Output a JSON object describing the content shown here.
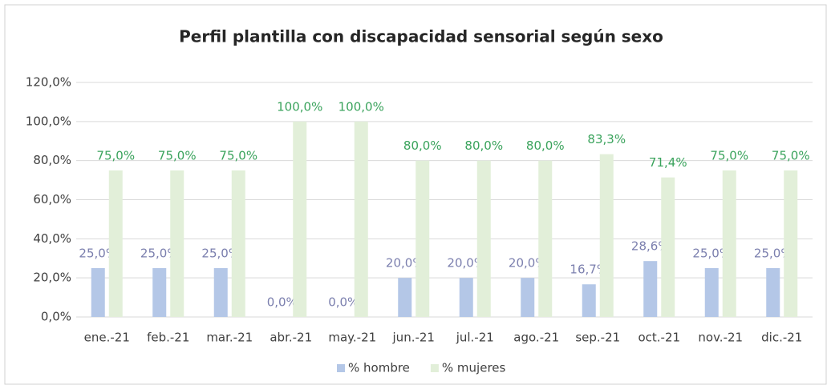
{
  "chart_data": {
    "type": "bar",
    "title": "Perfil plantilla con discapacidad  sensorial según sexo",
    "categories": [
      "ene.-21",
      "feb.-21",
      "mar.-21",
      "abr.-21",
      "may.-21",
      "jun.-21",
      "jul.-21",
      "ago.-21",
      "sep.-21",
      "oct.-21",
      "nov.-21",
      "dic.-21"
    ],
    "series": [
      {
        "name": "% hombre",
        "color": "#b4c7e7",
        "label_color": "#7b7fae",
        "values": [
          25,
          25,
          25,
          0,
          0,
          20,
          20,
          20,
          16.7,
          28.6,
          25,
          25
        ],
        "value_labels": [
          "25,0%",
          "25,0%",
          "25,0%",
          "0,0%",
          "0,0%",
          "20,0%",
          "20,0%",
          "20,0%",
          "16,7%",
          "28,6%",
          "25,0%",
          "25,0%"
        ]
      },
      {
        "name": "% mujeres",
        "color": "#e2efd9",
        "label_color": "#3aa35c",
        "values": [
          75,
          75,
          75,
          100,
          100,
          80,
          80,
          80,
          83.3,
          71.4,
          75,
          75
        ],
        "value_labels": [
          "75,0%",
          "75,0%",
          "75,0%",
          "100,0%",
          "100,0%",
          "80,0%",
          "80,0%",
          "80,0%",
          "83,3%",
          "71,4%",
          "75,0%",
          "75,0%"
        ]
      }
    ],
    "ylim": [
      0,
      120
    ],
    "yticks": [
      {
        "value": 0,
        "label": "0,0%"
      },
      {
        "value": 20,
        "label": "20,0%"
      },
      {
        "value": 40,
        "label": "40,0%"
      },
      {
        "value": 60,
        "label": "60,0%"
      },
      {
        "value": 80,
        "label": "80,0%"
      },
      {
        "value": 100,
        "label": "100,0%"
      },
      {
        "value": 120,
        "label": "120,0%"
      }
    ],
    "grid": true,
    "legend": "bottom"
  }
}
